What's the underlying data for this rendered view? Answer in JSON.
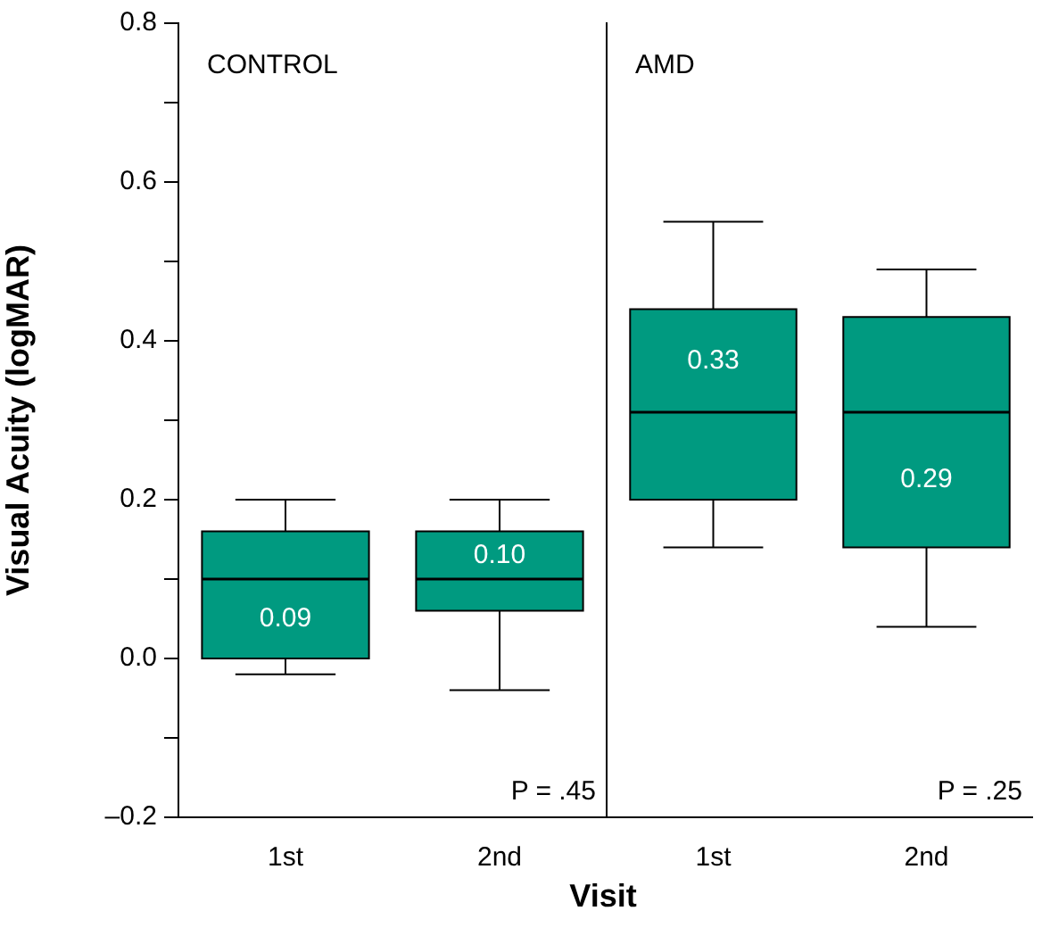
{
  "chart_data": [
    {
      "type": "box",
      "title": "CONTROL",
      "ylabel": "Visual Acuity (logMAR)",
      "xlabel": "Visit",
      "categories": [
        "1st",
        "2nd"
      ],
      "color": "#009a80",
      "boxes": [
        {
          "low": -0.02,
          "q1": 0.0,
          "median": 0.1,
          "q3": 0.16,
          "high": 0.2
        },
        {
          "low": -0.04,
          "q1": 0.06,
          "median": 0.1,
          "q3": 0.16,
          "high": 0.2
        }
      ],
      "ylim": [
        -0.2,
        0.8
      ],
      "yticks": [
        {
          "value": -0.2,
          "label": "–0.2"
        },
        {
          "value": -0.1,
          "label": null
        },
        {
          "value": 0,
          "label": "0.0"
        },
        {
          "value": 0.1,
          "label": null
        },
        {
          "value": 0.2,
          "label": "0.2"
        },
        {
          "value": 0.3,
          "label": null
        },
        {
          "value": 0.4,
          "label": "0.4"
        },
        {
          "value": 0.5,
          "label": null
        },
        {
          "value": 0.6,
          "label": "0.6"
        },
        {
          "value": 0.7,
          "label": null
        },
        {
          "value": 0.8,
          "label": "0.8"
        }
      ],
      "annotations": [
        "0.09",
        "0.10",
        "P = .45"
      ]
    },
    {
      "type": "box",
      "title": "AMD",
      "categories": [
        "1st",
        "2nd"
      ],
      "color": "#009a80",
      "tick_labels": "x",
      "boxes": [
        {
          "low": 0.14,
          "q1": 0.2,
          "median": 0.31,
          "q3": 0.44,
          "high": 0.55
        },
        {
          "low": 0.04,
          "q1": 0.14,
          "median": 0.31,
          "q3": 0.43,
          "high": 0.49
        }
      ],
      "ylim": [
        -0.2,
        0.8
      ],
      "annotations": [
        "0.33",
        "0.29",
        "P = .25"
      ]
    }
  ]
}
